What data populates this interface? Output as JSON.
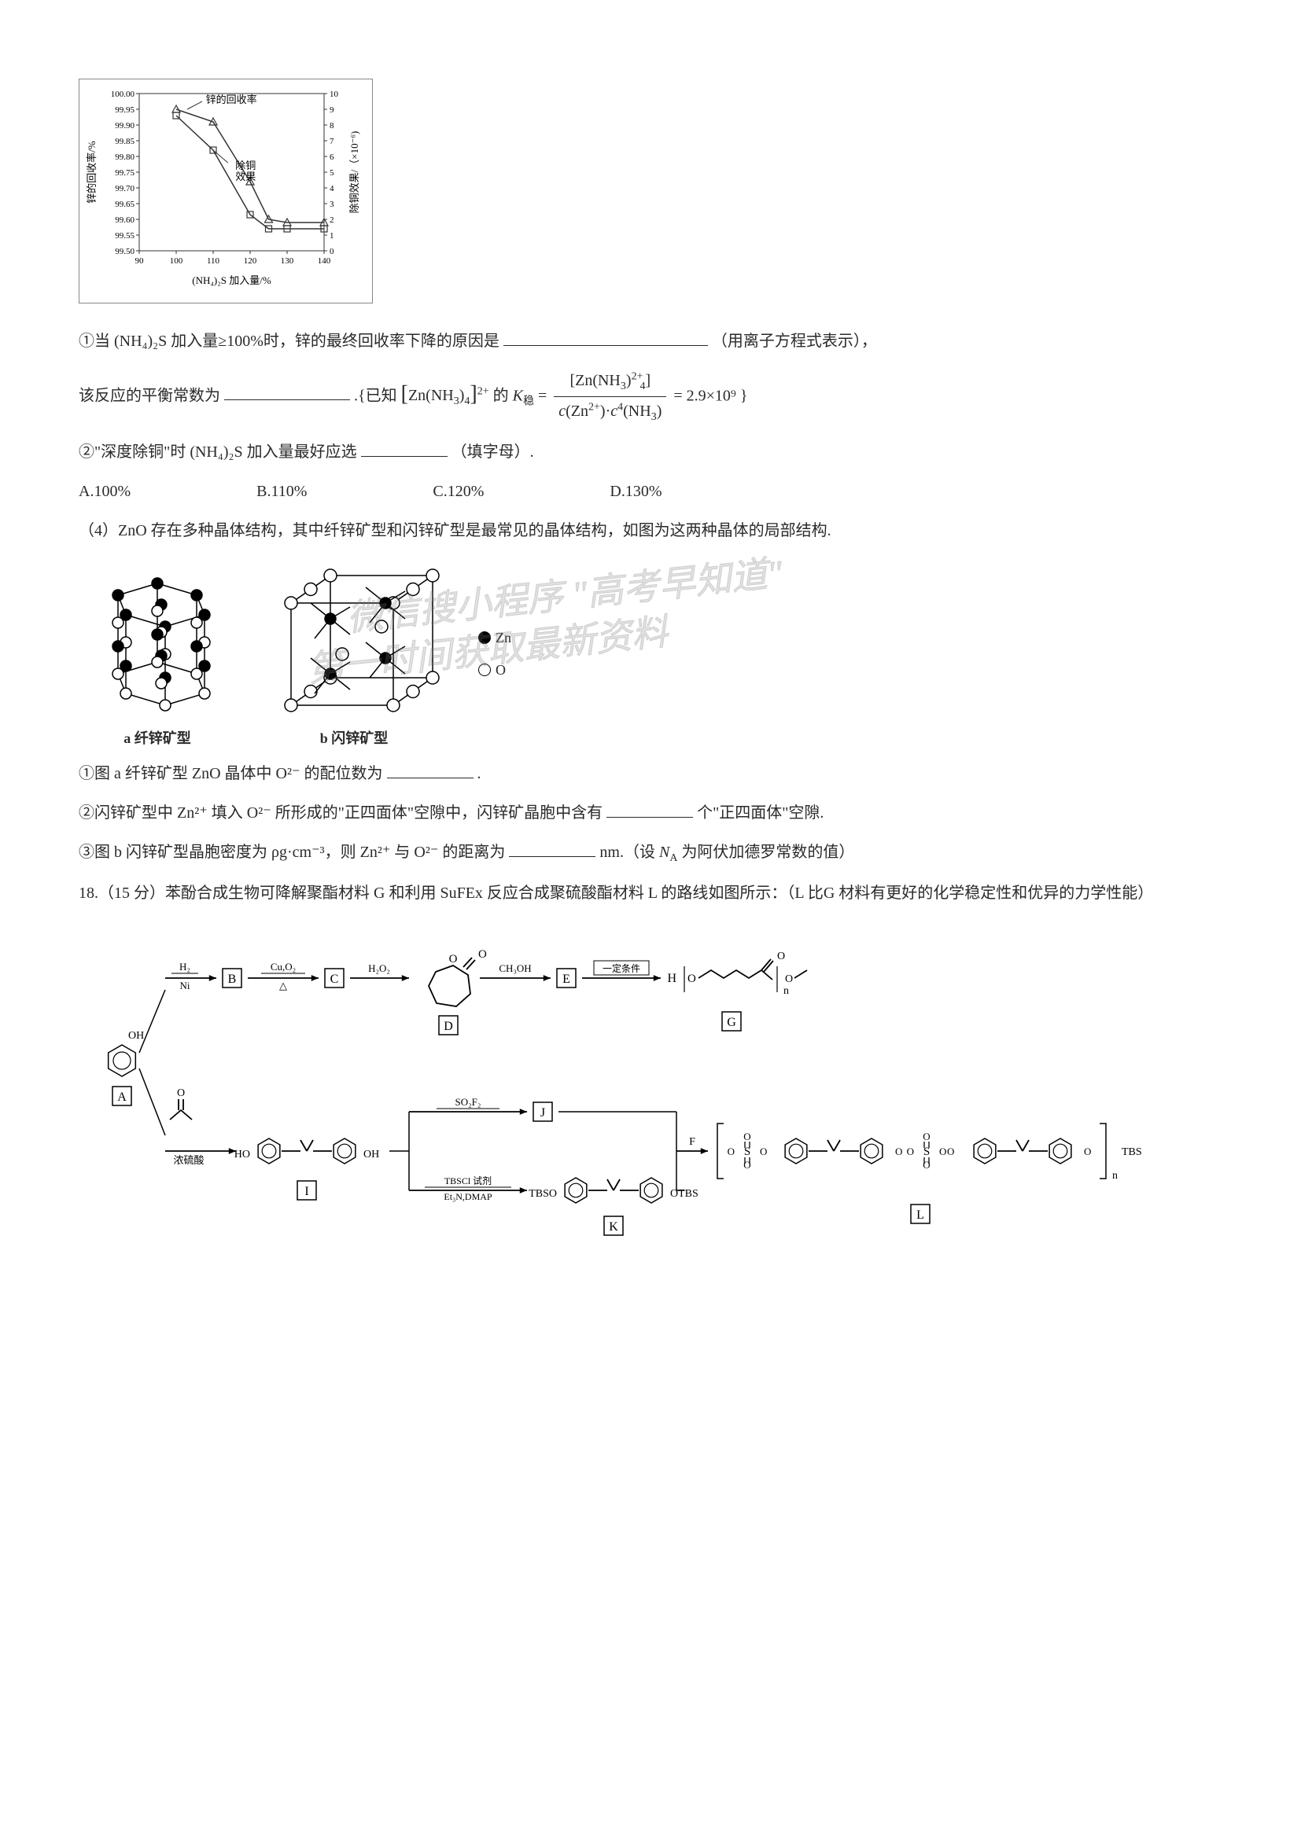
{
  "chart": {
    "y_left_label": "锌的回收率/%",
    "y_right_label": "除铜效果/（×10⁻⁶)",
    "x_label": "(NH₄)₂S 加入量/%",
    "y_left_ticks": [
      "100.00",
      "99.95",
      "99.90",
      "99.85",
      "99.80",
      "99.75",
      "99.70",
      "99.65",
      "99.60",
      "99.55",
      "99.50"
    ],
    "y_right_ticks": [
      "10",
      "9",
      "8",
      "7",
      "6",
      "5",
      "4",
      "3",
      "2",
      "1",
      "0"
    ],
    "x_ticks": [
      "90",
      "100",
      "110",
      "120",
      "130",
      "140"
    ],
    "series1_label": "锌的回收率",
    "series2_label": "除铜\n效果",
    "series1_points": [
      [
        100,
        99.95
      ],
      [
        110,
        99.91
      ],
      [
        120,
        99.72
      ],
      [
        125,
        99.6
      ],
      [
        130,
        99.59
      ],
      [
        140,
        99.59
      ]
    ],
    "series2_points": [
      [
        100,
        8.6
      ],
      [
        110,
        6.4
      ],
      [
        120,
        2.3
      ],
      [
        125,
        1.4
      ],
      [
        130,
        1.4
      ],
      [
        140,
        1.4
      ]
    ],
    "line_color": "#333333",
    "bg": "#ffffff"
  },
  "q1": {
    "line1_prefix": "①当",
    "formula1": "(NH₄)₂S",
    "line1_mid": "加入量≥100%时，锌的最终回收率下降的原因是",
    "line1_suffix": "（用离子方程式表示），",
    "line2_prefix": "该反应的平衡常数为",
    "line2_mid": ".{已知",
    "complex_formula_bracket": "[Zn(NH₃)₄]²⁺",
    "line2_mid2": "的",
    "k_label": "K稳",
    "frac_num": "[Zn(NH₃)₄²⁺]",
    "frac_den": "c(Zn²⁺)·c⁴(NH₃)",
    "k_value": "= 2.9×10⁹ }"
  },
  "q2": {
    "prefix": "②\"深度除铜\"时",
    "formula": "(NH₄)₂S",
    "suffix": "加入量最好应选",
    "hint": "（填字母）.",
    "options": {
      "A": "A.100%",
      "B": "B.110%",
      "C": "C.120%",
      "D": "D.130%"
    }
  },
  "q4_intro": "（4）ZnO 存在多种晶体结构，其中纤锌矿型和闪锌矿型是最常见的晶体结构，如图为这两种晶体的局部结构.",
  "diagram": {
    "caption_a": "a 纤锌矿型",
    "caption_b": "b 闪锌矿型",
    "legend_zn": "Zn",
    "legend_o": "O"
  },
  "watermark": {
    "line1": "微信搜小程序 \"高考早知道\"",
    "line2": "第一时间获取最新资料"
  },
  "q4_1": {
    "prefix": "①图 a 纤锌矿型 ZnO 晶体中 O²⁻ 的配位数为",
    "suffix": "."
  },
  "q4_2": {
    "prefix": "②闪锌矿型中 Zn²⁺ 填入 O²⁻ 所形成的\"正四面体\"空隙中，闪锌矿晶胞中含有",
    "suffix": "个\"正四面体\"空隙."
  },
  "q4_3": {
    "prefix": "③图 b 闪锌矿型晶胞密度为 ρg·cm⁻³，则 Zn²⁺ 与 O²⁻ 的距离为",
    "suffix_a": "nm.（设",
    "na": "Nₐ",
    "suffix_b": "为阿伏加德罗常数的值）"
  },
  "q18": {
    "text": "18.（15 分）苯酚合成生物可降解聚酯材料 G 和利用 SuFEx 反应合成聚硫酸酯材料 L 的路线如图所示：（L 比G 材料有更好的化学稳定性和优异的力学性能）"
  },
  "reaction": {
    "labels": [
      "A",
      "B",
      "C",
      "D",
      "E",
      "G",
      "I",
      "J",
      "K",
      "L"
    ],
    "reagents": {
      "r1": "H₂",
      "r1b": "Ni",
      "r2": "Cu,O₂",
      "r2b": "△",
      "r3": "H₂O₂",
      "r4": "CH₃OH",
      "r5": "一定条件",
      "r6": "浓硫酸",
      "r7": "SO₂F₂",
      "r8a": "TBSCl 试剂",
      "r8b": "Et₃N,DMAP"
    },
    "text_nodes": {
      "ho_left": "HO",
      "oh_right": "OH",
      "tbso": "TBSO",
      "otbs": "OTBS",
      "tbs_end": "TBS",
      "oh_phenol": "OH"
    }
  }
}
